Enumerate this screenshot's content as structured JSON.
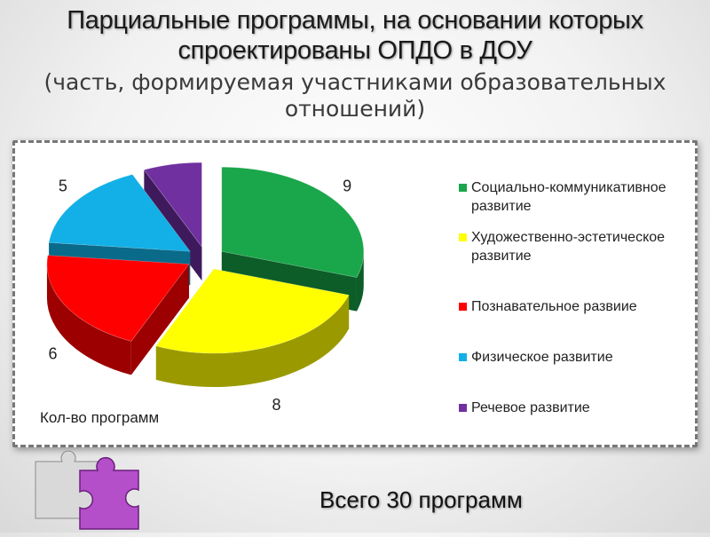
{
  "title": {
    "main": "Парциальные программы, на основании которых спроектированы ОПДО в ДОУ",
    "sub": "(часть, формируемая участниками образовательных отношений)"
  },
  "chart_data": {
    "type": "pie",
    "series_name": "Кол-во программ",
    "categories": [
      "Социально-коммуникативное развитие",
      "Художественно-эстетическое развитие",
      "Познавательное развиие",
      "Физическое развитие",
      "Речевое развитие"
    ],
    "values": [
      9,
      8,
      6,
      5,
      2
    ],
    "colors": [
      "#1aa64a",
      "#ffff00",
      "#ff0000",
      "#12b0e6",
      "#7030a0"
    ],
    "side_colors": [
      "#0c5d28",
      "#9a9a00",
      "#9c0000",
      "#0a6a8a",
      "#3e1a5c"
    ],
    "legend_position": "right",
    "exploded": true
  },
  "footer": {
    "total": "Всего 30 программ"
  },
  "icons": {
    "decor": "puzzle-icon"
  }
}
